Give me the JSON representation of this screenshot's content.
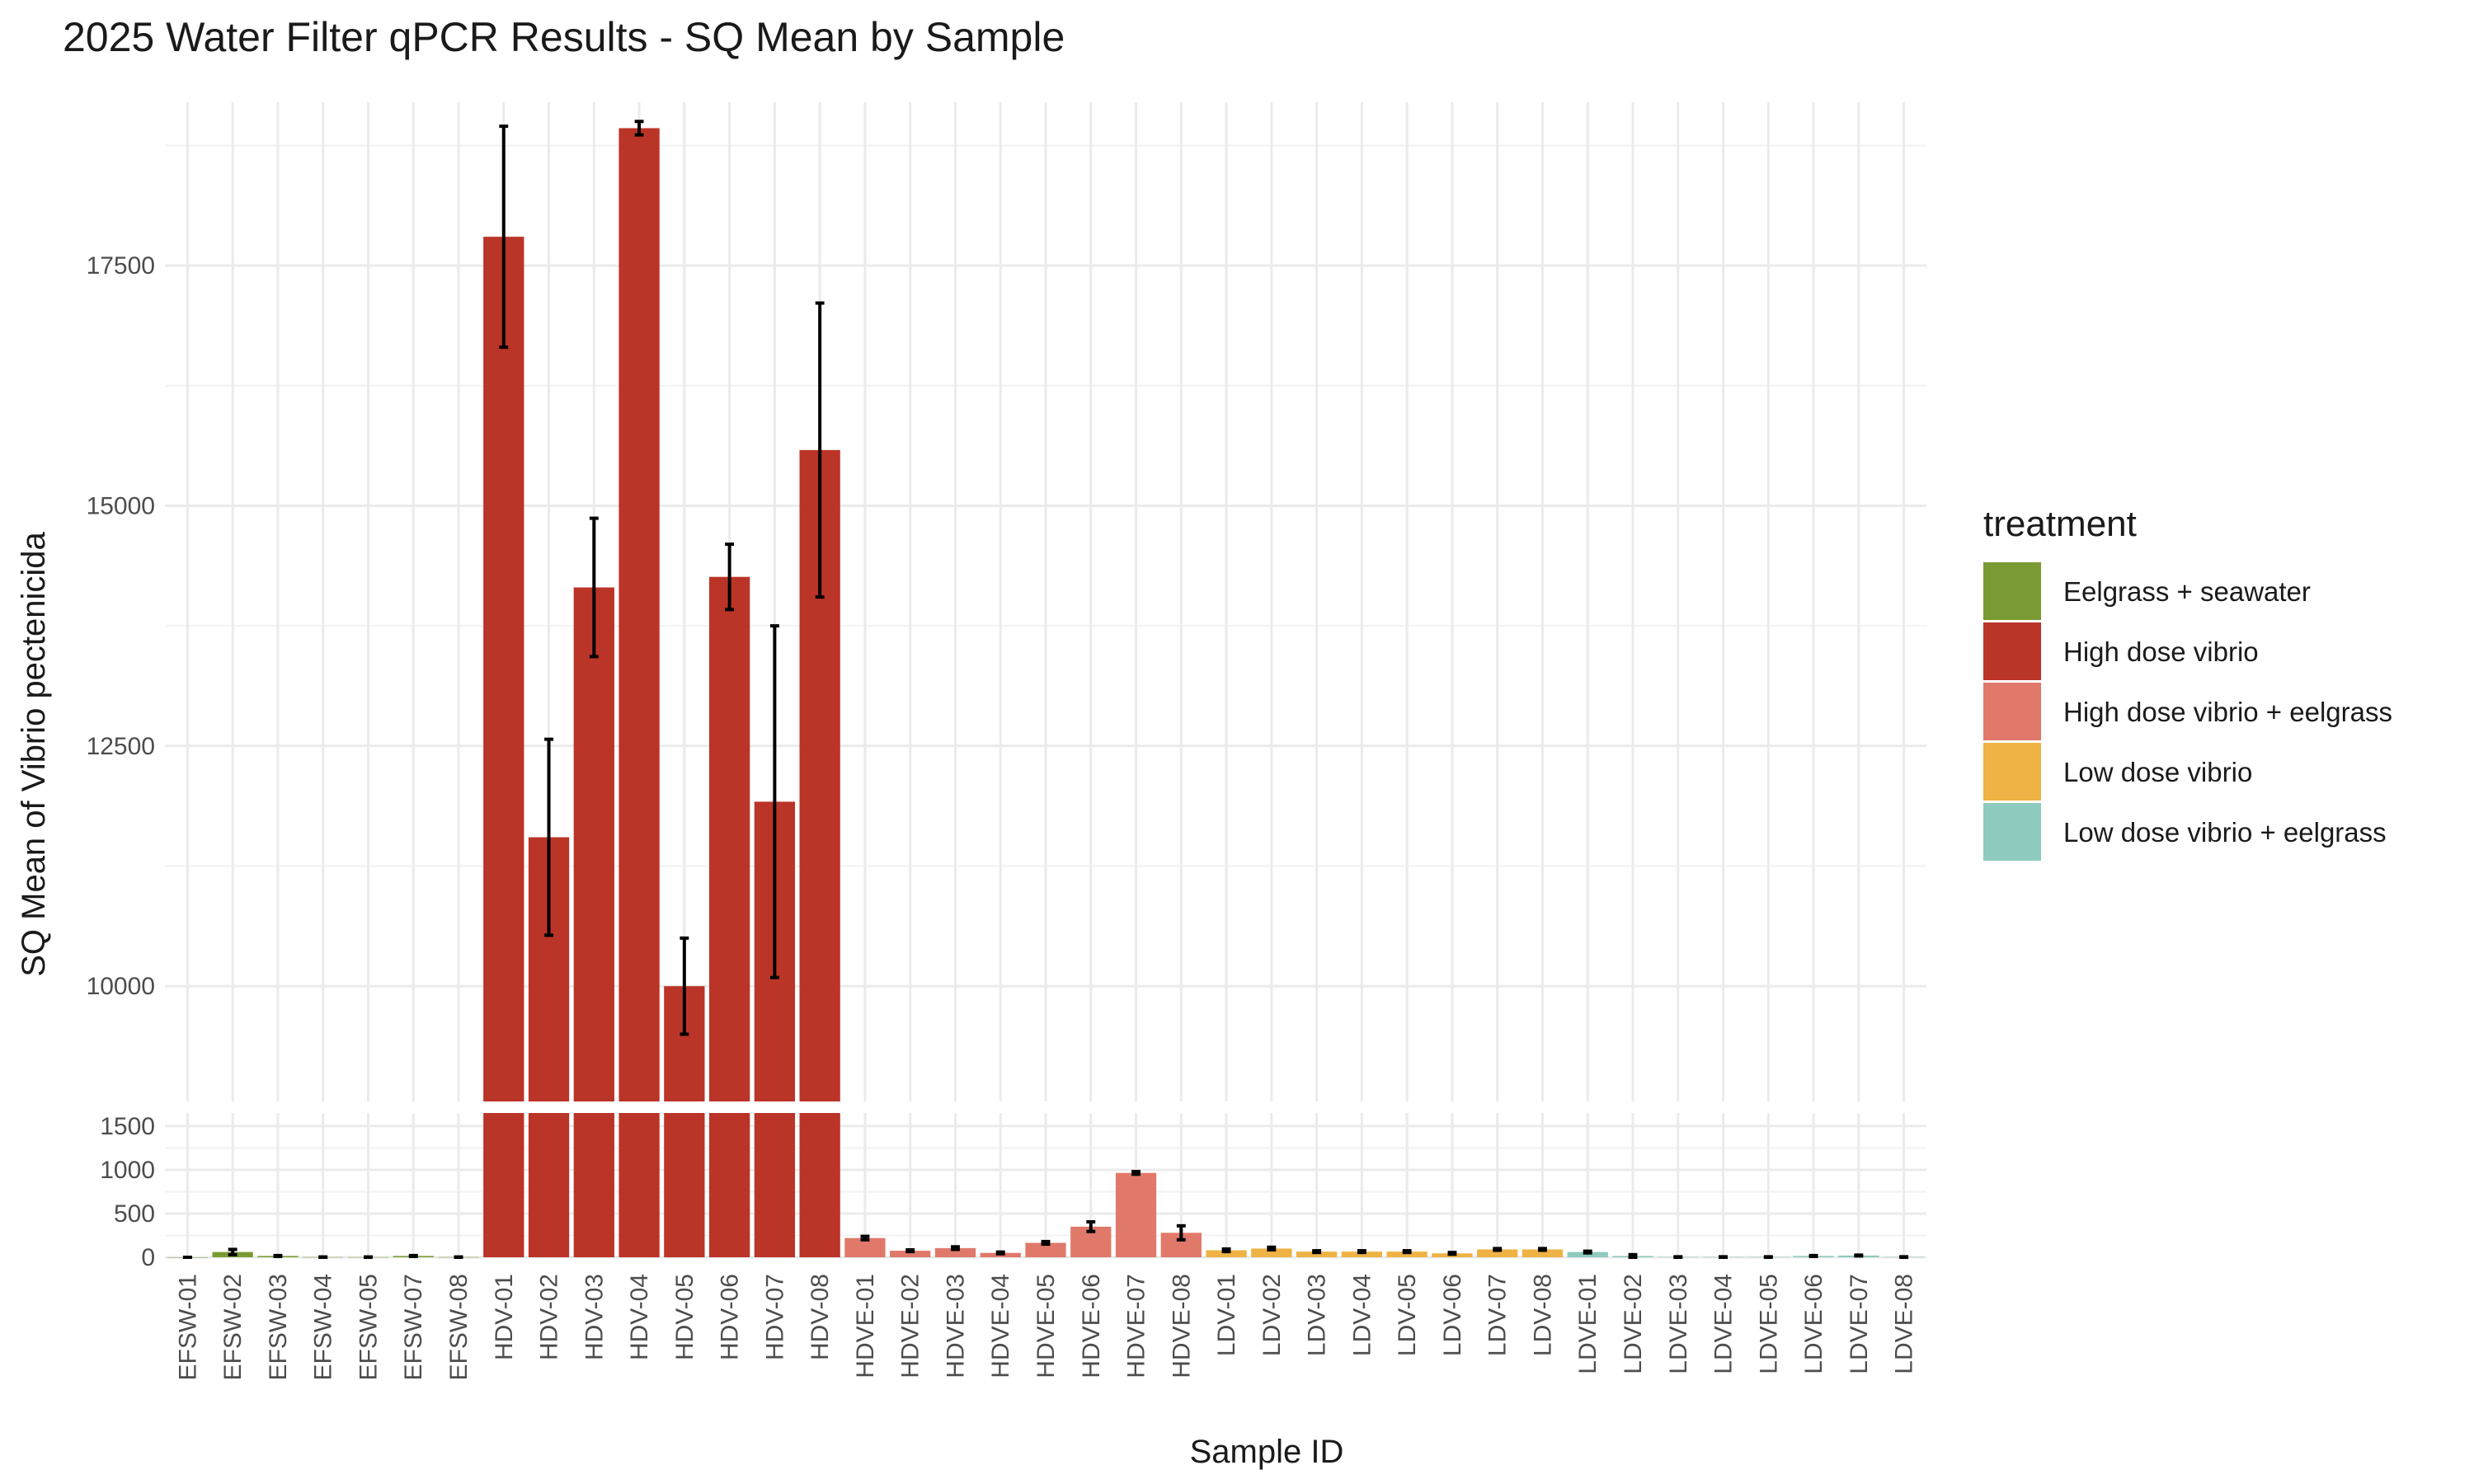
{
  "chart_data": {
    "type": "bar",
    "title": "2025 Water Filter qPCR Results - SQ Mean by Sample",
    "xlabel": "Sample ID",
    "ylabel": "SQ Mean of Vibrio pectenicida",
    "axis_break": {
      "lower_range": [
        0,
        1650
      ],
      "upper_range": [
        8800,
        19200
      ],
      "lower_ticks": [
        0,
        500,
        1000,
        1500
      ],
      "upper_ticks": [
        10000,
        12500,
        15000,
        17500
      ]
    },
    "grid": true,
    "legend_position": "right",
    "legend": {
      "title": "treatment",
      "entries": [
        {
          "label": "Eelgrass + seawater",
          "color": "#7a9a33"
        },
        {
          "label": "High dose vibrio",
          "color": "#bb3428"
        },
        {
          "label": "High dose vibrio + eelgrass",
          "color": "#e0796a"
        },
        {
          "label": "Low dose vibrio",
          "color": "#efb245"
        },
        {
          "label": "Low dose vibrio + eelgrass",
          "color": "#8ecabd"
        }
      ]
    },
    "series": [
      {
        "category": "EFSW-01",
        "treatment": 0,
        "value": 0,
        "err": 0
      },
      {
        "category": "EFSW-02",
        "treatment": 0,
        "value": 60,
        "err": 30
      },
      {
        "category": "EFSW-03",
        "treatment": 0,
        "value": 15,
        "err": 5
      },
      {
        "category": "EFSW-04",
        "treatment": 0,
        "value": 2,
        "err": 2
      },
      {
        "category": "EFSW-05",
        "treatment": 0,
        "value": 2,
        "err": 2
      },
      {
        "category": "EFSW-07",
        "treatment": 0,
        "value": 15,
        "err": 5
      },
      {
        "category": "EFSW-08",
        "treatment": 0,
        "value": 2,
        "err": 2
      },
      {
        "category": "HDV-01",
        "treatment": 1,
        "value": 17800,
        "err": 1150
      },
      {
        "category": "HDV-02",
        "treatment": 1,
        "value": 11550,
        "err": 1020
      },
      {
        "category": "HDV-03",
        "treatment": 1,
        "value": 14150,
        "err": 720
      },
      {
        "category": "HDV-04",
        "treatment": 1,
        "value": 18930,
        "err": 70
      },
      {
        "category": "HDV-05",
        "treatment": 1,
        "value": 10000,
        "err": 500
      },
      {
        "category": "HDV-06",
        "treatment": 1,
        "value": 14260,
        "err": 340
      },
      {
        "category": "HDV-07",
        "treatment": 1,
        "value": 11920,
        "err": 1830
      },
      {
        "category": "HDV-08",
        "treatment": 1,
        "value": 15580,
        "err": 1530
      },
      {
        "category": "HDVE-01",
        "treatment": 2,
        "value": 220,
        "err": 20
      },
      {
        "category": "HDVE-02",
        "treatment": 2,
        "value": 75,
        "err": 10
      },
      {
        "category": "HDVE-03",
        "treatment": 2,
        "value": 105,
        "err": 15
      },
      {
        "category": "HDVE-04",
        "treatment": 2,
        "value": 50,
        "err": 10
      },
      {
        "category": "HDVE-05",
        "treatment": 2,
        "value": 165,
        "err": 15
      },
      {
        "category": "HDVE-06",
        "treatment": 2,
        "value": 350,
        "err": 55
      },
      {
        "category": "HDVE-07",
        "treatment": 2,
        "value": 965,
        "err": 15
      },
      {
        "category": "HDVE-08",
        "treatment": 2,
        "value": 280,
        "err": 80
      },
      {
        "category": "LDV-01",
        "treatment": 3,
        "value": 80,
        "err": 15
      },
      {
        "category": "LDV-02",
        "treatment": 3,
        "value": 100,
        "err": 15
      },
      {
        "category": "LDV-03",
        "treatment": 3,
        "value": 65,
        "err": 10
      },
      {
        "category": "LDV-04",
        "treatment": 3,
        "value": 65,
        "err": 10
      },
      {
        "category": "LDV-05",
        "treatment": 3,
        "value": 65,
        "err": 10
      },
      {
        "category": "LDV-06",
        "treatment": 3,
        "value": 45,
        "err": 10
      },
      {
        "category": "LDV-07",
        "treatment": 3,
        "value": 90,
        "err": 10
      },
      {
        "category": "LDV-08",
        "treatment": 3,
        "value": 90,
        "err": 10
      },
      {
        "category": "LDVE-01",
        "treatment": 4,
        "value": 60,
        "err": 10
      },
      {
        "category": "LDVE-02",
        "treatment": 4,
        "value": 15,
        "err": 15
      },
      {
        "category": "LDVE-03",
        "treatment": 4,
        "value": 3,
        "err": 3
      },
      {
        "category": "LDVE-04",
        "treatment": 4,
        "value": 3,
        "err": 3
      },
      {
        "category": "LDVE-05",
        "treatment": 4,
        "value": 3,
        "err": 3
      },
      {
        "category": "LDVE-06",
        "treatment": 4,
        "value": 15,
        "err": 5
      },
      {
        "category": "LDVE-07",
        "treatment": 4,
        "value": 20,
        "err": 5
      },
      {
        "category": "LDVE-08",
        "treatment": 4,
        "value": 3,
        "err": 3
      }
    ]
  }
}
